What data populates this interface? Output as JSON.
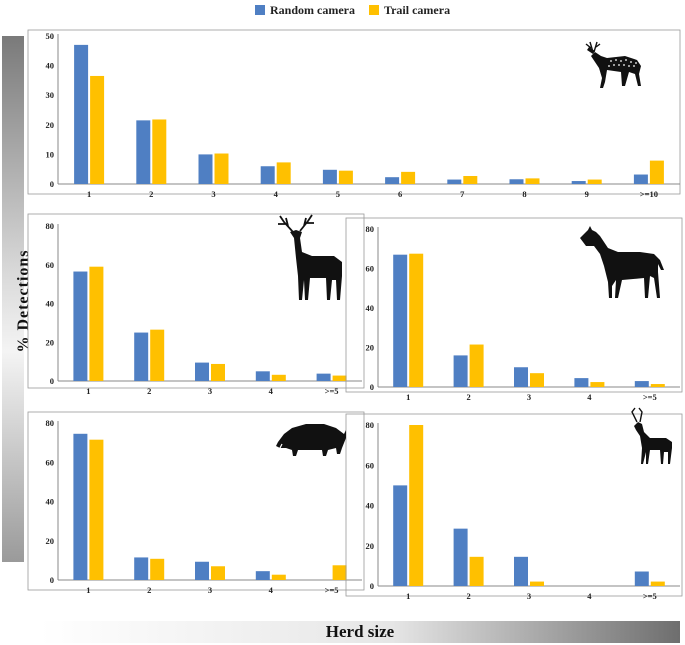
{
  "legend": {
    "random_label": "Random camera",
    "trail_label": "Trail camera",
    "random_color": "#4f7fc3",
    "trail_color": "#ffc000"
  },
  "ylabel": "% Detections",
  "xlabel": "Herd size",
  "icons": [
    "spotted-deer-icon",
    "sambar-deer-icon",
    "nilgai-icon",
    "wild-boar-icon",
    "blackbuck-icon"
  ],
  "chart_data": [
    {
      "type": "bar",
      "categories": [
        "1",
        "2",
        "3",
        "4",
        "5",
        "6",
        "7",
        "8",
        "9",
        ">=10"
      ],
      "series": [
        {
          "name": "Random camera",
          "values": [
            47,
            21.5,
            10,
            6,
            4.8,
            2.3,
            1.5,
            1.6,
            1.0,
            3.2
          ]
        },
        {
          "name": "Trail camera",
          "values": [
            36.5,
            21.8,
            10.3,
            7.3,
            4.5,
            4.1,
            2.7,
            1.9,
            1.5,
            7.9
          ]
        }
      ],
      "yticks": [
        0,
        10,
        20,
        30,
        40,
        50
      ],
      "ylim": [
        0,
        50
      ]
    },
    {
      "type": "bar",
      "categories": [
        "1",
        "2",
        "3",
        "4",
        ">=5"
      ],
      "series": [
        {
          "name": "Random camera",
          "values": [
            56.5,
            25,
            9.5,
            5,
            3.8
          ]
        },
        {
          "name": "Trail camera",
          "values": [
            59,
            26.5,
            8.8,
            3.2,
            2.8
          ]
        }
      ],
      "yticks": [
        0,
        20,
        40,
        60,
        80
      ],
      "ylim": [
        0,
        80
      ]
    },
    {
      "type": "bar",
      "categories": [
        "1",
        "2",
        "3",
        "4",
        ">=5"
      ],
      "series": [
        {
          "name": "Random camera",
          "values": [
            67,
            16,
            10,
            4.5,
            3
          ]
        },
        {
          "name": "Trail camera",
          "values": [
            67.5,
            21.5,
            7,
            2.5,
            1.5
          ]
        }
      ],
      "yticks": [
        0,
        20,
        40,
        60,
        80
      ],
      "ylim": [
        0,
        80
      ]
    },
    {
      "type": "bar",
      "categories": [
        "1",
        "2",
        "3",
        "4",
        ">=5"
      ],
      "series": [
        {
          "name": "Random camera",
          "values": [
            74.5,
            11.5,
            9.3,
            4.5,
            0
          ]
        },
        {
          "name": "Trail camera",
          "values": [
            71.5,
            10.8,
            7,
            2.7,
            7.5
          ]
        }
      ],
      "yticks": [
        0,
        20,
        40,
        60,
        80
      ],
      "ylim": [
        0,
        80
      ]
    },
    {
      "type": "bar",
      "categories": [
        "1",
        "2",
        "3",
        "4",
        ">=5"
      ],
      "series": [
        {
          "name": "Random camera",
          "values": [
            50,
            28.5,
            14.5,
            0,
            7.2
          ]
        },
        {
          "name": "Trail camera",
          "values": [
            80,
            14.5,
            2.2,
            0,
            2.2
          ]
        }
      ],
      "yticks": [
        0,
        20,
        40,
        60,
        80
      ],
      "ylim": [
        0,
        80
      ]
    }
  ]
}
